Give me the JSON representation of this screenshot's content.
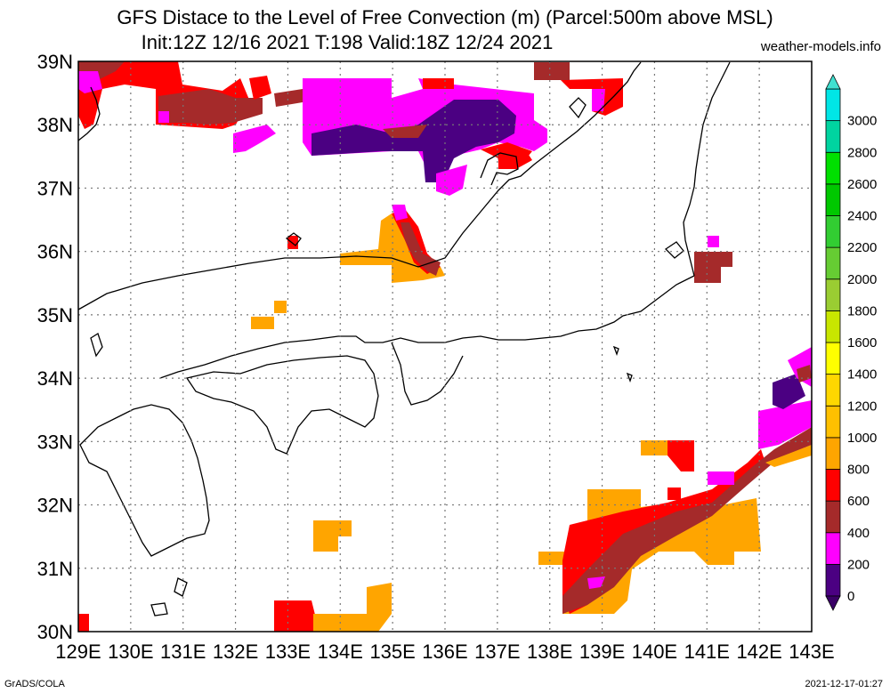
{
  "title_line1": "GFS Distace to the Level of Free Convection (m) (Parcel:500m above MSL)",
  "title_line2": "Init:12Z 12/16 2021 T:198 Valid:18Z 12/24 2021",
  "site": "weather-models.info",
  "footer_left": "GrADS/COLA",
  "footer_right": "2021-12-17-01:27",
  "axes": {
    "lon_labels": [
      "129E",
      "130E",
      "131E",
      "132E",
      "133E",
      "134E",
      "135E",
      "136E",
      "137E",
      "138E",
      "139E",
      "140E",
      "141E",
      "142E",
      "143E"
    ],
    "lat_labels": [
      "30N",
      "31N",
      "32N",
      "33N",
      "34N",
      "35N",
      "36N",
      "37N",
      "38N",
      "39N"
    ],
    "lon_range": [
      129,
      143
    ],
    "lat_range": [
      30,
      39
    ],
    "grid": "dotted"
  },
  "colorbar": {
    "labels": [
      "0",
      "200",
      "400",
      "600",
      "800",
      "1000",
      "1200",
      "1400",
      "1600",
      "1800",
      "2000",
      "2200",
      "2400",
      "2600",
      "2800",
      "3000"
    ],
    "colors": [
      "#4b0082",
      "#ff00ff",
      "#a52a2a",
      "#ff0000",
      "#ffa500",
      "#ffc000",
      "#ffd700",
      "#ffff00",
      "#c8e600",
      "#9acd32",
      "#66cc33",
      "#32cd32",
      "#00c800",
      "#00e000",
      "#00d4a0",
      "#00e6e6"
    ]
  },
  "field_colors": {
    "c0": "#4b0082",
    "c200": "#ff00ff",
    "c400": "#a52a2a",
    "c600": "#ff0000",
    "c800": "#ffa500",
    "c1000": "#ffb800"
  }
}
